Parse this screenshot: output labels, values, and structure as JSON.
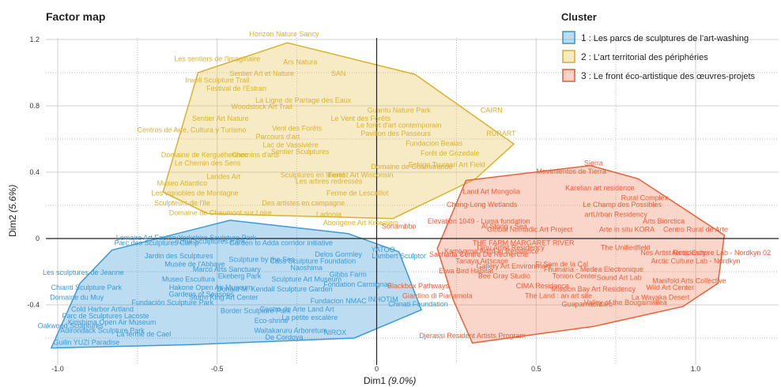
{
  "chart_data": {
    "type": "scatter",
    "title": "Factor map",
    "xlabel": "Dim1",
    "xlabel_pct": "(9.0%)",
    "ylabel": "Dim2",
    "ylabel_pct": "(5.6%)",
    "xlim": [
      -1.0,
      1.1
    ],
    "ylim": [
      -0.65,
      1.25
    ],
    "x_ticks": [
      -1.0,
      -0.5,
      0,
      0.5,
      1.0
    ],
    "x_tick_labels": [
      "-1.0",
      "-0.5",
      "0",
      "0.5",
      "1.0"
    ],
    "y_ticks": [
      -0.4,
      0,
      0.4,
      0.8,
      1.2
    ],
    "y_tick_labels": [
      "-0.4",
      "0",
      "0.4",
      "0.8",
      "1.2"
    ],
    "grid": true,
    "legend": {
      "title": "Cluster",
      "placement": "top-right",
      "entries": [
        {
          "number": "1",
          "label": ": Les parcs de sculptures de l’art-washing"
        },
        {
          "number": "2",
          "label": ": L’art territorial des périphéries"
        },
        {
          "number": "3",
          "label": ": Le front éco-artistique des œuvres-projets"
        }
      ]
    },
    "series": [
      {
        "color": "#3c9ad6",
        "fill": "#3c9ad6",
        "hull": [
          [
            -1.02,
            -0.66
          ],
          [
            -0.93,
            -0.27
          ],
          [
            -0.83,
            -0.07
          ],
          [
            -0.46,
            0.11
          ],
          [
            -0.09,
            0.03
          ],
          [
            0.07,
            -0.08
          ],
          [
            0.14,
            -0.43
          ],
          [
            -0.07,
            -0.6
          ],
          [
            -0.58,
            -0.64
          ]
        ],
        "points": [
          {
            "label": "Lemaire Art Factory",
            "x": -0.72,
            "y": -0.01
          },
          {
            "label": "Parc des Sculptures Camp",
            "x": -0.69,
            "y": -0.04
          },
          {
            "label": "Izmir Sculptures Park",
            "x": -0.52,
            "y": -0.03
          },
          {
            "label": "Chianti Sculpture Park",
            "x": -0.91,
            "y": -0.31
          },
          {
            "label": "Domaine du Muy",
            "x": -0.94,
            "y": -0.37
          },
          {
            "label": "Les sculptures de Jeanne",
            "x": -0.92,
            "y": -0.22
          },
          {
            "label": "Jardin des Sculptures",
            "x": -0.62,
            "y": -0.12
          },
          {
            "label": "Musée de l'Abbaye",
            "x": -0.57,
            "y": -0.17
          },
          {
            "label": "Fundacion NMAC",
            "x": -0.12,
            "y": -0.39
          },
          {
            "label": "Eco-shrine",
            "x": -0.33,
            "y": -0.51
          },
          {
            "label": "Waitakaruru Arboretum",
            "x": -0.27,
            "y": -0.57
          },
          {
            "label": "De Cordova",
            "x": -0.29,
            "y": -0.61
          },
          {
            "label": "NIROX",
            "x": -0.13,
            "y": -0.58
          },
          {
            "label": "Gibbs Farm",
            "x": -0.09,
            "y": -0.23
          },
          {
            "label": "Naoshima",
            "x": -0.22,
            "y": -0.19
          },
          {
            "label": "Delos Gormley",
            "x": -0.12,
            "y": -0.11
          },
          {
            "label": "Chinati Foundation",
            "x": 0.13,
            "y": -0.41
          },
          {
            "label": "INHOTIM",
            "x": 0.02,
            "y": -0.38
          },
          {
            "label": "Border Sculpture Park",
            "x": -0.38,
            "y": -0.45
          },
          {
            "label": "Cold Harbor Artland",
            "x": -0.86,
            "y": -0.44
          },
          {
            "label": "Parc de Sculptures Lacoste",
            "x": -0.85,
            "y": -0.48
          },
          {
            "label": "Kirishima Open Air Museum",
            "x": -0.83,
            "y": -0.52
          },
          {
            "label": "Oakwood Sculptures",
            "x": -0.96,
            "y": -0.54
          },
          {
            "label": "Adirondack Sculpture Park",
            "x": -0.86,
            "y": -0.57
          },
          {
            "label": "Guilin YUZI Paradise",
            "x": -0.91,
            "y": -0.64
          },
          {
            "label": "La ferme de Cael",
            "x": -0.73,
            "y": -0.59
          },
          {
            "label": "La petite escalère",
            "x": -0.21,
            "y": -0.49
          },
          {
            "label": "Hakone Open Air Museum",
            "x": -0.52,
            "y": -0.31
          },
          {
            "label": "Storm King Art Center",
            "x": -0.48,
            "y": -0.37
          },
          {
            "label": "Donald M. Kendall Sculpture Garden",
            "x": -0.32,
            "y": -0.32
          },
          {
            "label": "Ekeberg Park",
            "x": -0.43,
            "y": -0.24
          },
          {
            "label": "Sculpture by the Sea",
            "x": -0.36,
            "y": -0.14
          },
          {
            "label": "Museo Escultura",
            "x": -0.59,
            "y": -0.26
          },
          {
            "label": "Yorkshire Sculpture Park",
            "x": -0.5,
            "y": -0.01
          },
          {
            "label": "Garden to Adda corridor initiative",
            "x": -0.3,
            "y": -0.04
          },
          {
            "label": "YATOO",
            "x": 0.02,
            "y": -0.08
          },
          {
            "label": "Lambert Sculptor",
            "x": 0.07,
            "y": -0.12
          },
          {
            "label": "Sculpture Art Museum",
            "x": -0.22,
            "y": -0.26
          },
          {
            "label": "Cass Sculpture Foundation",
            "x": -0.2,
            "y": -0.15
          },
          {
            "label": "Fondation Carmignac",
            "x": -0.06,
            "y": -0.29
          },
          {
            "label": "Gardens of Seasons",
            "x": -0.55,
            "y": -0.35
          },
          {
            "label": "Fundación Sculpture Park",
            "x": -0.64,
            "y": -0.4
          },
          {
            "label": "Marco Arts Sanctuary",
            "x": -0.47,
            "y": -0.2
          },
          {
            "label": "Centro de Arte Land Art",
            "x": -0.25,
            "y": -0.44
          }
        ]
      },
      {
        "color": "#d9b22e",
        "fill": "#e8c65a",
        "hull": [
          [
            -0.56,
            1.0
          ],
          [
            -0.28,
            1.18
          ],
          [
            0.12,
            0.99
          ],
          [
            0.43,
            0.57
          ],
          [
            0.31,
            0.36
          ],
          [
            0.05,
            0.12
          ],
          [
            -0.53,
            0.15
          ],
          [
            -0.67,
            0.28
          ]
        ],
        "points": [
          {
            "label": "Horizon Nature Sancy",
            "x": -0.29,
            "y": 1.22
          },
          {
            "label": "Les sentiers de l'imaginaire",
            "x": -0.5,
            "y": 1.07
          },
          {
            "label": "Ars Natura",
            "x": -0.24,
            "y": 1.05
          },
          {
            "label": "Sentier Art et Nature",
            "x": -0.36,
            "y": 0.98
          },
          {
            "label": "SAN",
            "x": -0.12,
            "y": 0.98
          },
          {
            "label": "Irwell Sculpture Trail",
            "x": -0.5,
            "y": 0.94
          },
          {
            "label": "Festival de l'Estran",
            "x": -0.44,
            "y": 0.89
          },
          {
            "label": "La Ligne de Partage des Eaux",
            "x": -0.23,
            "y": 0.82
          },
          {
            "label": "Woodstock Art Trail",
            "x": -0.36,
            "y": 0.78
          },
          {
            "label": "Guantu Nature Park",
            "x": 0.07,
            "y": 0.76
          },
          {
            "label": "CAIRN",
            "x": 0.36,
            "y": 0.76
          },
          {
            "label": "Sentier Art Nature",
            "x": -0.49,
            "y": 0.71
          },
          {
            "label": "Le Vent des Forêts",
            "x": -0.05,
            "y": 0.71
          },
          {
            "label": "Centros de Arte, Cultura y Turismo",
            "x": -0.58,
            "y": 0.64
          },
          {
            "label": "Le forêt d'art contemporain",
            "x": 0.07,
            "y": 0.67
          },
          {
            "label": "RURART",
            "x": 0.39,
            "y": 0.62
          },
          {
            "label": "Vent des Forêts",
            "x": -0.25,
            "y": 0.65
          },
          {
            "label": "Fundacion Beaias",
            "x": 0.18,
            "y": 0.56
          },
          {
            "label": "Domaine de Kerguéhennec",
            "x": -0.54,
            "y": 0.49
          },
          {
            "label": "Forêt de Grizedale",
            "x": 0.23,
            "y": 0.5
          },
          {
            "label": "Le Chemin des Sens",
            "x": -0.53,
            "y": 0.44
          },
          {
            "label": "Echigo Tsumari Art Field",
            "x": 0.22,
            "y": 0.43
          },
          {
            "label": "Domaine de Chamarande",
            "x": 0.11,
            "y": 0.42
          },
          {
            "label": "Landes Art",
            "x": -0.48,
            "y": 0.36
          },
          {
            "label": "Sculptures en liberté",
            "x": -0.2,
            "y": 0.37
          },
          {
            "label": "Les arbres redressés",
            "x": -0.15,
            "y": 0.33
          },
          {
            "label": "Museo Atlantico",
            "x": -0.61,
            "y": 0.32
          },
          {
            "label": "Les vignobles de Montagne",
            "x": -0.57,
            "y": 0.26
          },
          {
            "label": "Ferme de Lescaillot",
            "x": -0.06,
            "y": 0.26
          },
          {
            "label": "Sculpteurs de l'Ile",
            "x": -0.61,
            "y": 0.2
          },
          {
            "label": "Des artistes en campagne",
            "x": -0.23,
            "y": 0.2
          },
          {
            "label": "Domaine de Chaumont sur Loire",
            "x": -0.49,
            "y": 0.14
          },
          {
            "label": "Ladonia",
            "x": -0.15,
            "y": 0.13
          },
          {
            "label": "Aborigène Art Kroenlein",
            "x": -0.05,
            "y": 0.08
          },
          {
            "label": "Lac de Vassivière",
            "x": -0.27,
            "y": 0.55
          },
          {
            "label": "Chemins d'arts",
            "x": -0.38,
            "y": 0.49
          },
          {
            "label": "Sentier Sculptures",
            "x": -0.24,
            "y": 0.51
          },
          {
            "label": "Forest Art Wisconsin",
            "x": -0.05,
            "y": 0.37
          },
          {
            "label": "Parcours d'art",
            "x": -0.31,
            "y": 0.6
          },
          {
            "label": "Pavillon des Passeurs",
            "x": 0.06,
            "y": 0.62
          }
        ]
      },
      {
        "color": "#e8603a",
        "fill": "#f08a66",
        "hull": [
          [
            0.28,
            0.35
          ],
          [
            0.67,
            0.44
          ],
          [
            0.82,
            0.36
          ],
          [
            1.09,
            0.02
          ],
          [
            1.07,
            -0.27
          ],
          [
            0.96,
            -0.41
          ],
          [
            0.68,
            -0.53
          ],
          [
            0.3,
            -0.63
          ],
          [
            0.24,
            -0.37
          ],
          [
            0.19,
            -0.06
          ]
        ],
        "points": [
          {
            "label": "Sierra",
            "x": 0.68,
            "y": 0.44
          },
          {
            "label": "Movimientos de Tierra",
            "x": 0.61,
            "y": 0.39
          },
          {
            "label": "Land Art Mongolia",
            "x": 0.36,
            "y": 0.27
          },
          {
            "label": "Karelian art residence",
            "x": 0.7,
            "y": 0.29
          },
          {
            "label": "Cheng-Long Wetlands",
            "x": 0.33,
            "y": 0.19
          },
          {
            "label": "Rural Complex",
            "x": 0.84,
            "y": 0.23
          },
          {
            "label": "Le Champ des Possibles",
            "x": 0.77,
            "y": 0.19
          },
          {
            "label": "artUrban Residency",
            "x": 0.75,
            "y": 0.13
          },
          {
            "label": "Arts Biorctica",
            "x": 0.9,
            "y": 0.09
          },
          {
            "label": "Elevation 1049 - Luma fundation",
            "x": 0.32,
            "y": 0.09
          },
          {
            "label": "Al Storig - Sea",
            "x": 0.4,
            "y": 0.06
          },
          {
            "label": "Sonambbo",
            "x": 0.07,
            "y": 0.06
          },
          {
            "label": "Global Nomadic Art Project",
            "x": 0.48,
            "y": 0.04
          },
          {
            "label": "Arte in situ",
            "x": 0.75,
            "y": 0.04
          },
          {
            "label": "KORA",
            "x": 0.84,
            "y": 0.04
          },
          {
            "label": "Centro Rural de Arte",
            "x": 1.0,
            "y": 0.04
          },
          {
            "label": "THE FARM MARGARET RIVER",
            "x": 0.46,
            "y": -0.04
          },
          {
            "label": "The Unifiedfield",
            "x": 0.78,
            "y": -0.07
          },
          {
            "label": "Sachada Centre De Recherche",
            "x": 0.32,
            "y": -0.11
          },
          {
            "label": "Nes Artist Residency",
            "x": 0.93,
            "y": -0.1
          },
          {
            "label": "Arctic Culture Lab - Nordkyn 02",
            "x": 1.08,
            "y": -0.1
          },
          {
            "label": "Tanaya Artscape",
            "x": 0.33,
            "y": -0.15
          },
          {
            "label": "Arctic Culture Lab - Nordkyn",
            "x": 1.0,
            "y": -0.15
          },
          {
            "label": "El Som de la Cal",
            "x": 0.58,
            "y": -0.17
          },
          {
            "label": "Kamiyama Artist in Residence",
            "x": 0.36,
            "y": -0.09
          },
          {
            "label": "Fnumaria - Medea Electronique",
            "x": 0.68,
            "y": -0.2
          },
          {
            "label": "Bee Gray Studio",
            "x": 0.4,
            "y": -0.24
          },
          {
            "label": "Tonion Center",
            "x": 0.62,
            "y": -0.24
          },
          {
            "label": "Manifold Arts Collective",
            "x": 0.98,
            "y": -0.27
          },
          {
            "label": "CIMA Residence",
            "x": 0.52,
            "y": -0.3
          },
          {
            "label": "Mission Bay Art Residency",
            "x": 0.68,
            "y": -0.32
          },
          {
            "label": "Wild Art Center",
            "x": 0.92,
            "y": -0.31
          },
          {
            "label": "The Land : an art site",
            "x": 0.57,
            "y": -0.36
          },
          {
            "label": "La Wayaka Desert",
            "x": 0.89,
            "y": -0.37
          },
          {
            "label": "Valley of the Bougainvillea",
            "x": 0.78,
            "y": -0.4
          },
          {
            "label": "Guapamacataro",
            "x": 0.66,
            "y": -0.41
          },
          {
            "label": "Blackbox Pathways",
            "x": 0.13,
            "y": -0.3
          },
          {
            "label": "Giardino di Pianamola",
            "x": 0.19,
            "y": -0.36
          },
          {
            "label": "Djerassi Resident Artists Program",
            "x": 0.3,
            "y": -0.6
          },
          {
            "label": "Dinu Artist Residency",
            "x": 0.42,
            "y": -0.07
          },
          {
            "label": "Eiwa Bird Habitat",
            "x": 0.28,
            "y": -0.21
          },
          {
            "label": "Gallery Art Environment",
            "x": 0.43,
            "y": -0.18
          },
          {
            "label": "Sound Art Lab",
            "x": 0.76,
            "y": -0.25
          }
        ]
      }
    ]
  }
}
